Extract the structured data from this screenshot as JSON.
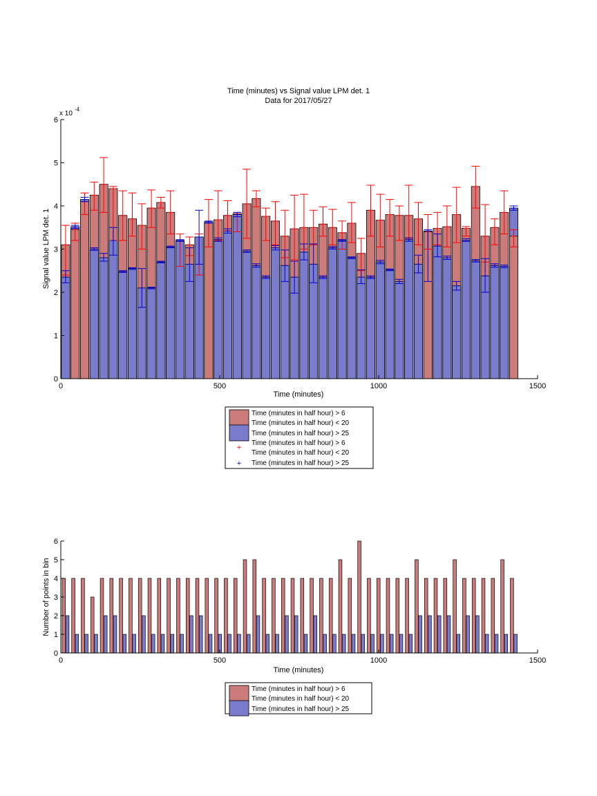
{
  "figure": {
    "title_line1": "Time (minutes) vs Signal value LPM det. 1",
    "title_line2": "Data for 2017/05/27"
  },
  "colors": {
    "red_bar": "#cc7b7b",
    "blue_bar": "#7b7bcc",
    "red_err": "#ff0000",
    "blue_err": "#0000cc",
    "axis": "#000000"
  },
  "chart_data": [
    {
      "type": "bar",
      "title": "Time (minutes) vs Signal value LPM det. 1",
      "subtitle": "Data for 2017/05/27",
      "xlabel": "Time (minutes)",
      "ylabel": "Signal value LPM det. 1",
      "y_exponent_label": "x 10",
      "y_exponent": "-4",
      "xlim": [
        0,
        1500
      ],
      "ylim": [
        0,
        6
      ],
      "xticks": [
        0,
        500,
        1000,
        1500
      ],
      "yticks": [
        0,
        1,
        2,
        3,
        4,
        5,
        6
      ],
      "grid": false,
      "legend_position": "bottom-center",
      "x": [
        15,
        45,
        75,
        105,
        135,
        165,
        195,
        225,
        255,
        285,
        315,
        345,
        375,
        405,
        435,
        465,
        495,
        525,
        555,
        585,
        615,
        645,
        675,
        705,
        735,
        765,
        795,
        825,
        855,
        885,
        915,
        945,
        975,
        1005,
        1035,
        1065,
        1095,
        1125,
        1155,
        1185,
        1215,
        1245,
        1275,
        1305,
        1335,
        1365,
        1395,
        1425
      ],
      "series": [
        {
          "name": "Time (minutes in half hour) > 6",
          "legend_label": "Time (minutes in half hour) > 6",
          "legend_label_2": "Time (minutes in half hour) < 20",
          "values": [
            3.1,
            3.45,
            4.1,
            4.25,
            4.5,
            4.4,
            3.78,
            3.7,
            3.55,
            3.95,
            4.08,
            3.85,
            3.2,
            3.1,
            3.28,
            3.6,
            3.68,
            3.78,
            3.82,
            4.05,
            4.17,
            3.76,
            3.65,
            3.3,
            3.47,
            3.5,
            3.5,
            3.58,
            3.5,
            3.38,
            3.6,
            2.9,
            3.9,
            3.67,
            3.8,
            3.78,
            3.78,
            3.7,
            3.4,
            3.48,
            3.52,
            3.8,
            3.48,
            4.45,
            3.3,
            3.5,
            3.85,
            3.3
          ],
          "error_low": [
            2.4,
            3.2,
            3.8,
            3.9,
            3.85,
            3.2,
            3.2,
            3.3,
            3.0,
            3.5,
            3.95,
            3.35,
            2.6,
            2.85,
            2.4,
            3.05,
            3.2,
            3.42,
            3.4,
            3.25,
            3.98,
            3.2,
            3.1,
            2.8,
            2.75,
            3.0,
            3.1,
            3.3,
            3.1,
            3.0,
            3.15,
            2.5,
            3.3,
            3.05,
            3.3,
            3.2,
            3.25,
            3.1,
            3.0,
            3.1,
            3.05,
            3.15,
            3.3,
            3.95,
            2.7,
            3.1,
            3.35,
            3.05
          ],
          "error_high": [
            3.55,
            3.6,
            4.3,
            4.55,
            5.12,
            4.45,
            4.35,
            4.3,
            4.05,
            4.37,
            4.2,
            4.35,
            3.35,
            3.28,
            3.35,
            4.15,
            4.35,
            4.12,
            3.85,
            4.85,
            4.35,
            3.95,
            4.1,
            3.9,
            4.25,
            4.27,
            3.9,
            3.98,
            3.92,
            3.65,
            4.08,
            3.25,
            4.48,
            4.27,
            4.15,
            4.0,
            4.48,
            4.08,
            3.8,
            3.85,
            4.0,
            4.43,
            3.52,
            4.92,
            4.03,
            3.7,
            4.35,
            3.45
          ]
        },
        {
          "name": "Time (minutes in half hour) > 25",
          "legend_label": "Time (minutes in half hour) > 25",
          "values": [
            2.35,
            3.52,
            4.15,
            3.0,
            2.8,
            3.2,
            2.48,
            2.55,
            2.1,
            2.1,
            2.7,
            3.05,
            3.2,
            2.65,
            3.28,
            3.63,
            3.22,
            3.42,
            3.8,
            2.95,
            2.62,
            2.35,
            3.03,
            2.62,
            2.35,
            2.93,
            2.65,
            2.35,
            3.03,
            3.2,
            2.8,
            2.35,
            2.35,
            2.7,
            2.52,
            2.25,
            3.22,
            2.65,
            3.42,
            3.07,
            2.8,
            2.15,
            3.2,
            2.73,
            2.38,
            2.62,
            2.6,
            3.95
          ],
          "error_low": [
            2.22,
            3.48,
            4.1,
            2.97,
            2.72,
            2.86,
            2.46,
            2.53,
            1.65,
            2.08,
            2.68,
            3.03,
            3.18,
            2.25,
            2.65,
            3.6,
            3.18,
            3.37,
            3.75,
            2.92,
            2.58,
            2.32,
            2.98,
            2.25,
            1.98,
            2.75,
            2.22,
            2.32,
            3.0,
            3.18,
            2.78,
            2.2,
            2.32,
            2.66,
            2.5,
            2.2,
            3.18,
            2.45,
            2.25,
            2.82,
            2.76,
            2.05,
            3.18,
            2.7,
            2.0,
            2.58,
            2.57,
            3.9
          ],
          "error_high": [
            2.5,
            3.55,
            4.2,
            3.03,
            2.9,
            3.5,
            2.5,
            2.57,
            2.55,
            2.12,
            2.72,
            3.07,
            3.22,
            3.03,
            3.9,
            3.65,
            3.26,
            3.47,
            3.85,
            2.98,
            2.66,
            2.38,
            3.08,
            2.98,
            2.72,
            3.12,
            3.12,
            2.38,
            3.06,
            3.22,
            2.82,
            2.52,
            2.38,
            2.74,
            2.54,
            2.3,
            3.26,
            2.86,
            3.45,
            3.35,
            2.84,
            2.25,
            3.24,
            2.76,
            2.78,
            2.66,
            2.63,
            4.0
          ]
        }
      ],
      "legend": [
        {
          "label": "Time (minutes in half hour) > 6",
          "marker": "red-box"
        },
        {
          "label": "Time (minutes in half hour) < 20",
          "marker": "none"
        },
        {
          "label": "Time (minutes in half hour) > 25",
          "marker": "blue-box"
        },
        {
          "label": "Time (minutes in half hour) > 6",
          "marker": "none"
        },
        {
          "label": "Time (minutes in half hour) < 20",
          "marker": "red-plus"
        },
        {
          "label": "Time (minutes in half hour) > 25",
          "marker": "blue-plus"
        }
      ]
    },
    {
      "type": "bar",
      "title": "",
      "xlabel": "Time (minutes)",
      "ylabel": "Number of points in bin",
      "xlim": [
        0,
        1500
      ],
      "ylim": [
        0,
        6
      ],
      "xticks": [
        0,
        500,
        1000,
        1500
      ],
      "yticks": [
        0,
        1,
        2,
        3,
        4,
        5,
        6
      ],
      "grid": false,
      "legend_position": "bottom-center",
      "x": [
        15,
        45,
        75,
        105,
        135,
        165,
        195,
        225,
        255,
        285,
        315,
        345,
        375,
        405,
        435,
        465,
        495,
        525,
        555,
        585,
        615,
        645,
        675,
        705,
        735,
        765,
        795,
        825,
        855,
        885,
        915,
        945,
        975,
        1005,
        1035,
        1065,
        1095,
        1125,
        1155,
        1185,
        1215,
        1245,
        1275,
        1305,
        1335,
        1365,
        1395,
        1425
      ],
      "series": [
        {
          "name": "Time (minutes in half hour) > 6",
          "values": [
            4,
            4,
            4,
            3,
            4,
            4,
            4,
            4,
            4,
            4,
            4,
            4,
            4,
            4,
            4,
            4,
            4,
            4,
            4,
            5,
            5,
            4,
            4,
            4,
            4,
            4,
            4,
            4,
            4,
            5,
            4,
            6,
            4,
            4,
            4,
            4,
            4,
            5,
            4,
            4,
            4,
            5,
            4,
            4,
            4,
            4,
            5,
            4
          ]
        },
        {
          "name": "Time (minutes in half hour) > 25",
          "values": [
            2,
            1,
            1,
            1,
            2,
            2,
            1,
            1,
            2,
            1,
            1,
            1,
            1,
            2,
            2,
            1,
            1,
            1,
            1,
            1,
            2,
            1,
            1,
            2,
            2,
            1,
            2,
            1,
            1,
            1,
            1,
            1,
            1,
            1,
            1,
            1,
            1,
            2,
            2,
            2,
            2,
            1,
            2,
            2,
            1,
            1,
            1,
            1
          ]
        }
      ],
      "legend": [
        {
          "label": "Time (minutes in half hour) > 6",
          "marker": "red-box"
        },
        {
          "label": "Time (minutes in half hour) < 20",
          "marker": "none"
        },
        {
          "label": "Time (minutes in half hour) > 25",
          "marker": "blue-box"
        }
      ]
    }
  ]
}
